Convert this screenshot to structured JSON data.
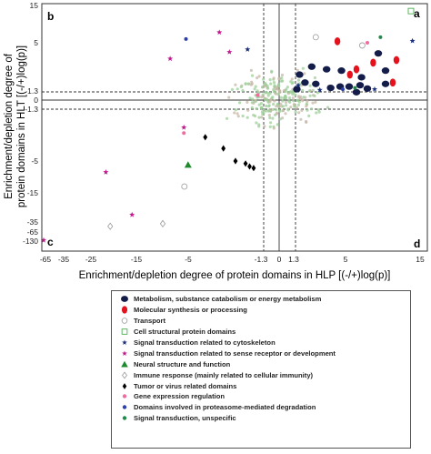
{
  "chart_data": {
    "type": "scatter",
    "xlabel": "Enrichment/depletion degree of protein domains in HLP  [(-/+)log(p)]",
    "ylabel_lines": [
      "Enrichment/depletion degree of",
      "protein domains in HLT  [(-/+)log(p)]"
    ],
    "x_ticks": [
      "-65",
      "-35",
      "-25",
      "-15",
      "-5",
      "-1.3",
      "0",
      "1.3",
      "5",
      "15"
    ],
    "y_ticks": [
      "15",
      "5",
      "1.3",
      "0",
      "-1.3",
      "-5",
      "-15",
      "-35",
      "-65",
      "-130"
    ],
    "quadrant_labels": {
      "top_left": "b",
      "top_right": "a",
      "bottom_left": "c",
      "bottom_right": "d"
    },
    "threshold": 1.3,
    "legend": [
      {
        "symbol": "circle-filled",
        "color": "#141c4a",
        "label": "Metabolism, substance catabolism or energy metabolism"
      },
      {
        "symbol": "ellipse-filled",
        "color": "#e3121c",
        "label": "Molecular synthesis or processing"
      },
      {
        "symbol": "circle-open",
        "color": "#999999",
        "label": "Transport"
      },
      {
        "symbol": "square-open",
        "color": "#4caf50",
        "label": "Cell structural protein domains"
      },
      {
        "symbol": "star",
        "color": "#1a2e7a",
        "label": "Signal transduction related to cytoskeleton"
      },
      {
        "symbol": "star",
        "color": "#c2188f",
        "label": "Signal transduction related to sense receptor or development"
      },
      {
        "symbol": "triangle",
        "color": "#1f8a2c",
        "label": "Neural structure and function"
      },
      {
        "symbol": "diamond-open",
        "color": "#999999",
        "label": "Immune response (mainly related to cellular immunity)"
      },
      {
        "symbol": "diamond-filled",
        "color": "#000000",
        "label": "Tumor or virus related domains"
      },
      {
        "symbol": "dot",
        "color": "#f06ca0",
        "label": "Gene expression regulation"
      },
      {
        "symbol": "dot",
        "color": "#2b3fb0",
        "label": "Domains involved in proteasome-mediated degradation"
      },
      {
        "symbol": "dot",
        "color": "#1f8a4a",
        "label": "Signal transduction, unspecific"
      }
    ],
    "points": [
      {
        "cat": 0,
        "x": 2.5,
        "y": 3.2
      },
      {
        "cat": 0,
        "x": 3.6,
        "y": 3.0
      },
      {
        "cat": 0,
        "x": 1.6,
        "y": 2.6
      },
      {
        "cat": 0,
        "x": 4.7,
        "y": 2.9
      },
      {
        "cat": 0,
        "x": 7.2,
        "y": 2.4
      },
      {
        "cat": 0,
        "x": 9.5,
        "y": 4.2
      },
      {
        "cat": 0,
        "x": 10.5,
        "y": 2.9
      },
      {
        "cat": 0,
        "x": 2.0,
        "y": 2.0
      },
      {
        "cat": 0,
        "x": 2.8,
        "y": 1.9
      },
      {
        "cat": 0,
        "x": 3.9,
        "y": 1.6
      },
      {
        "cat": 0,
        "x": 4.6,
        "y": 1.7
      },
      {
        "cat": 0,
        "x": 5.5,
        "y": 1.7
      },
      {
        "cat": 0,
        "x": 7.0,
        "y": 1.8
      },
      {
        "cat": 0,
        "x": 10.5,
        "y": 1.9
      },
      {
        "cat": 0,
        "x": 6.5,
        "y": 1.25
      },
      {
        "cat": 0,
        "x": 1.4,
        "y": 1.5
      },
      {
        "cat": 0,
        "x": 8.0,
        "y": 1.55
      },
      {
        "cat": 1,
        "x": 4.4,
        "y": 5.4
      },
      {
        "cat": 1,
        "x": 6.5,
        "y": 3.0
      },
      {
        "cat": 1,
        "x": 8.8,
        "y": 3.5
      },
      {
        "cat": 1,
        "x": 5.6,
        "y": 2.6
      },
      {
        "cat": 1,
        "x": 11.5,
        "y": 2.0
      },
      {
        "cat": 1,
        "x": 12.0,
        "y": 3.7
      },
      {
        "cat": 2,
        "x": 2.8,
        "y": 6.5
      },
      {
        "cat": 2,
        "x": 7.3,
        "y": 4.8
      },
      {
        "cat": 2,
        "x": -5.9,
        "y": -13
      },
      {
        "cat": 3,
        "x": 14.0,
        "y": 13.5
      },
      {
        "cat": 4,
        "x": 14.2,
        "y": 5.5
      },
      {
        "cat": 4,
        "x": 1.5,
        "y": 1.8
      },
      {
        "cat": 4,
        "x": 3.1,
        "y": 1.45
      },
      {
        "cat": 4,
        "x": 9.0,
        "y": 1.5
      },
      {
        "cat": 4,
        "x": -2.1,
        "y": 4.5
      },
      {
        "cat": 5,
        "x": -3.5,
        "y": 7.8
      },
      {
        "cat": 5,
        "x": -8.6,
        "y": 3.8
      },
      {
        "cat": 5,
        "x": -22,
        "y": -8.5
      },
      {
        "cat": 5,
        "x": -16,
        "y": -30
      },
      {
        "cat": 5,
        "x": -3.0,
        "y": 4.3
      },
      {
        "cat": 5,
        "x": -6.0,
        "y": -2.6
      },
      {
        "cat": 5,
        "x": -65,
        "y": -130
      },
      {
        "cat": 6,
        "x": -5.2,
        "y": -6.2
      },
      {
        "cat": 7,
        "x": -10,
        "y": -40
      },
      {
        "cat": 7,
        "x": -21,
        "y": -48
      },
      {
        "cat": 8,
        "x": -4.2,
        "y": -3.3
      },
      {
        "cat": 8,
        "x": -3.3,
        "y": -4.1
      },
      {
        "cat": 8,
        "x": -2.7,
        "y": -5.0
      },
      {
        "cat": 8,
        "x": -2.2,
        "y": -5.8
      },
      {
        "cat": 8,
        "x": -2.0,
        "y": -6.7
      },
      {
        "cat": 8,
        "x": -1.8,
        "y": -7.2
      },
      {
        "cat": 9,
        "x": 8.0,
        "y": 5.0
      },
      {
        "cat": 9,
        "x": -6.0,
        "y": -3.0
      },
      {
        "cat": 9,
        "x": -1.6,
        "y": 0.8
      },
      {
        "cat": 10,
        "x": -5.6,
        "y": 6.0
      },
      {
        "cat": 10,
        "x": 4.8,
        "y": 1.5
      },
      {
        "cat": 11,
        "x": 9.8,
        "y": 6.5
      },
      {
        "cat": 11,
        "x": 6.3,
        "y": 1.6
      }
    ]
  }
}
